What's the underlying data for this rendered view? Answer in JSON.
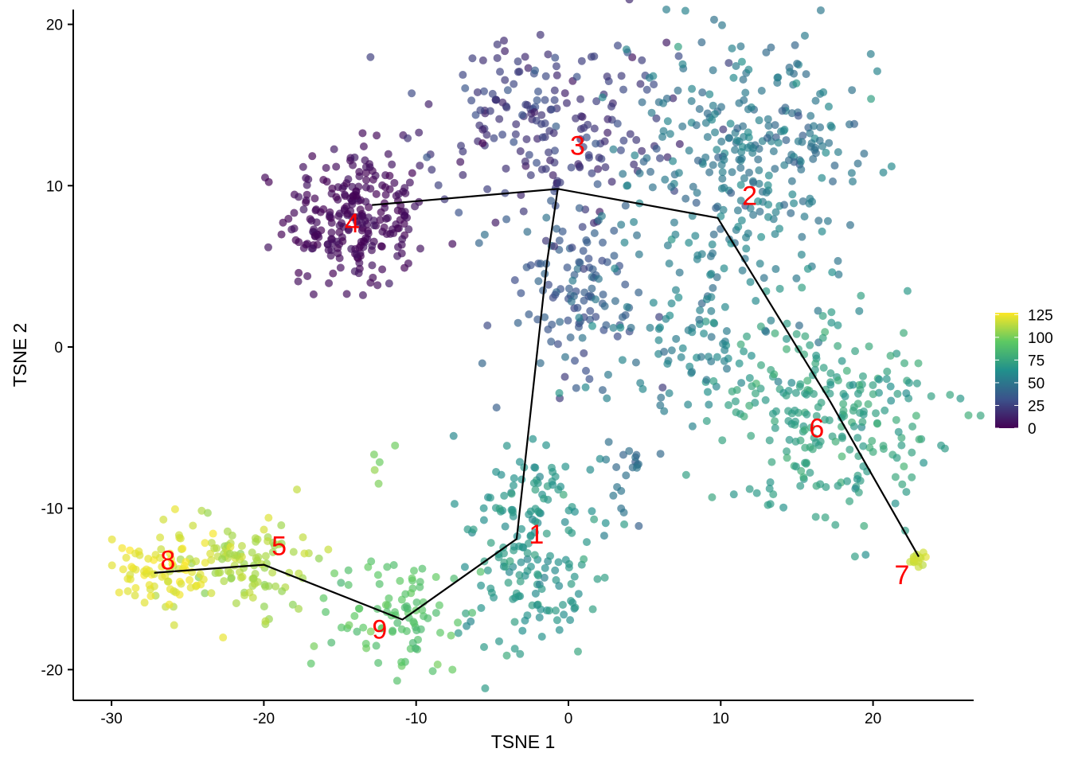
{
  "chart_data": {
    "type": "scatter",
    "title": "",
    "xlabel": "TSNE 1",
    "ylabel": "TSNE 2",
    "xlim": [
      -32.5,
      26.5
    ],
    "ylim": [
      -21.5,
      21
    ],
    "xticks": [
      -30,
      -20,
      -10,
      0,
      10,
      20
    ],
    "yticks": [
      -20,
      -10,
      0,
      10,
      20
    ],
    "grid": false,
    "color_scale": {
      "name": "viridis",
      "ticks": [
        0,
        25,
        50,
        75,
        100,
        125
      ],
      "range": [
        0,
        127
      ],
      "stops": [
        "#440154",
        "#3b528b",
        "#21908c",
        "#5dc963",
        "#fde725"
      ],
      "legend_position": "right"
    },
    "point_clusters_note_values": "pseudotime colored points grouped by region",
    "point_clusters": [
      {
        "center": [
          -14,
          8
        ],
        "spread": [
          2.3,
          2.2
        ],
        "count": 250,
        "value": 3,
        "value_spread": 3
      },
      {
        "center": [
          -1.5,
          14
        ],
        "spread": [
          4,
          2.7
        ],
        "count": 200,
        "value": 22,
        "value_spread": 6
      },
      {
        "center": [
          0.5,
          3
        ],
        "spread": [
          2.5,
          3.5
        ],
        "count": 120,
        "value": 35,
        "value_spread": 6
      },
      {
        "center": [
          12,
          12
        ],
        "spread": [
          4,
          4
        ],
        "count": 300,
        "value": 52,
        "value_spread": 6
      },
      {
        "center": [
          8,
          1
        ],
        "spread": [
          3.5,
          3
        ],
        "count": 100,
        "value": 56,
        "value_spread": 5
      },
      {
        "center": [
          17,
          -4
        ],
        "spread": [
          3.5,
          3
        ],
        "count": 250,
        "value": 72,
        "value_spread": 5
      },
      {
        "center": [
          -2.5,
          -12
        ],
        "spread": [
          2.5,
          3.5
        ],
        "count": 180,
        "value": 66,
        "value_spread": 4
      },
      {
        "center": [
          -11,
          -16.5
        ],
        "spread": [
          2.2,
          1.8
        ],
        "count": 90,
        "value": 92,
        "value_spread": 4
      },
      {
        "center": [
          -21,
          -13.5
        ],
        "spread": [
          2.4,
          1.6
        ],
        "count": 110,
        "value": 110,
        "value_spread": 4
      },
      {
        "center": [
          -26.5,
          -14
        ],
        "spread": [
          1.6,
          1.3
        ],
        "count": 80,
        "value": 122,
        "value_spread": 3
      },
      {
        "center": [
          23,
          -13.2
        ],
        "spread": [
          0.4,
          0.3
        ],
        "count": 15,
        "value": 117,
        "value_spread": 2
      },
      {
        "center": [
          -12.5,
          -7
        ],
        "spread": [
          0.5,
          1.2
        ],
        "count": 5,
        "value": 100,
        "value_spread": 3
      },
      {
        "center": [
          4,
          -8
        ],
        "spread": [
          1,
          1.5
        ],
        "count": 20,
        "value": 45,
        "value_spread": 4
      }
    ],
    "trajectory": [
      [
        [
          -12.9,
          8.8
        ],
        [
          -0.7,
          9.8
        ],
        [
          9.8,
          8.0
        ],
        [
          17.2,
          -3.4
        ],
        [
          23.0,
          -13.0
        ]
      ],
      [
        [
          -0.7,
          9.8
        ],
        [
          -1.4,
          5.3
        ],
        [
          -3.4,
          -11.9
        ],
        [
          -10.9,
          -16.9
        ],
        [
          -20.0,
          -13.5
        ],
        [
          -27.2,
          -14.0
        ]
      ]
    ],
    "cluster_labels": [
      {
        "text": "1",
        "x": -2.1,
        "y": -11.6
      },
      {
        "text": "2",
        "x": 11.9,
        "y": 9.4
      },
      {
        "text": "3",
        "x": 0.6,
        "y": 12.5
      },
      {
        "text": "4",
        "x": -14.2,
        "y": 7.7
      },
      {
        "text": "5",
        "x": -19.0,
        "y": -12.3
      },
      {
        "text": "6",
        "x": 16.3,
        "y": -5.0
      },
      {
        "text": "7",
        "x": 21.9,
        "y": -14.1
      },
      {
        "text": "8",
        "x": -26.3,
        "y": -13.2
      },
      {
        "text": "9",
        "x": -12.4,
        "y": -17.5
      }
    ],
    "label_color": "#ff0000"
  }
}
